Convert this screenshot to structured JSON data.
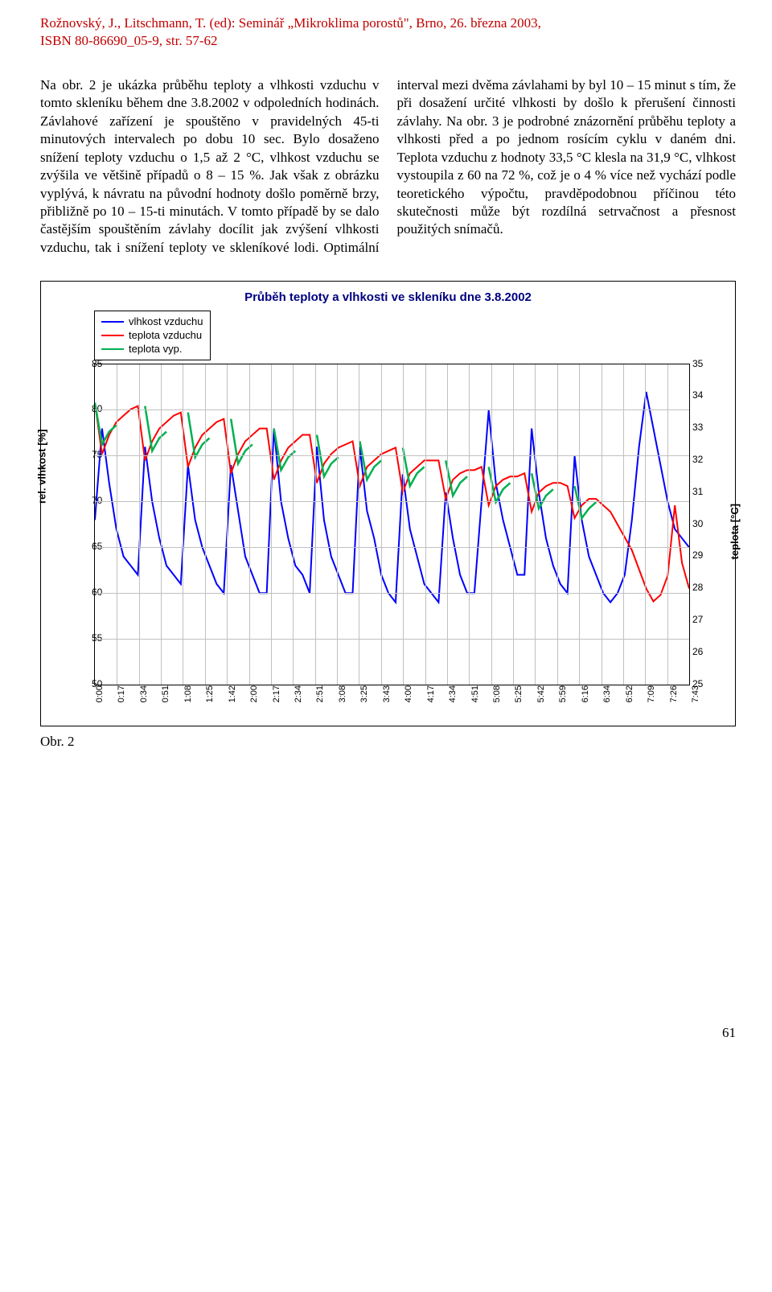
{
  "header": {
    "line1": "Rožnovský, J., Litschmann, T. (ed): Seminář „Mikroklima porostů\", Brno, 26. března 2003,",
    "line2": "ISBN 80-86690_05-9, str. 57-62",
    "color": "#c00000"
  },
  "body": {
    "p1": "Na obr. 2 je ukázka průběhu teploty a vlhkosti vzduchu v tomto skleníku během dne 3.8.2002 v odpoledních hodinách. Závlahové zařízení je spouštěno v pravidelných 45-ti minutových intervalech po dobu 10 sec. Bylo dosaženo snížení teploty vzduchu o 1,5 až 2 °C, vlhkost vzduchu se zvýšila ve většině případů o 8 – 15 %. Jak však z obrázku vyplývá, k návratu na původní hodnoty došlo poměrně brzy, přibližně po 10 – 15-ti minutách. V tomto případě by se dalo častějším spouštěním závlahy docílit jak zvýšení vlhkosti vzduchu, tak i snížení teploty ve skleníkové lodi. Optimální interval mezi dvěma závlahami by byl 10 – 15 minut s tím, že při dosažení určité vlhkosti by došlo k přerušení činnosti závlahy. Na obr. 3 je podrobné znázornění průběhu teploty a vlhkosti před a po jednom rosícím cyklu v daném dni. Teplota vzduchu z hodnoty 33,5 °C klesla na 31,9 °C, vlhkost vystoupila z 60 na 72 %, což je o 4 % více než vychází podle teoretického výpočtu, pravděpodobnou příčinou této skutečnosti může být rozdílná setrvačnost a přesnost použitých snímačů."
  },
  "chart": {
    "title": "Průběh teploty a vlhkosti ve skleníku dne 3.8.2002",
    "title_fontsize": 15,
    "title_color": "#000080",
    "legend": [
      {
        "label": "vlhkost vzduchu",
        "color": "#0000ff"
      },
      {
        "label": "teplota vzduchu",
        "color": "#ff0000"
      },
      {
        "label": "teplota vyp.",
        "color": "#00b050"
      }
    ],
    "y_left": {
      "label": "rel. vlhkost [%]",
      "min": 50,
      "max": 85,
      "step": 5
    },
    "y_right": {
      "label": "teplota [°C]",
      "min": 25,
      "max": 35,
      "step": 1
    },
    "x_labels": [
      "0:00",
      "0:17",
      "0:34",
      "0:51",
      "1:08",
      "1:25",
      "1:42",
      "2:00",
      "2:17",
      "2:34",
      "2:51",
      "3:08",
      "3:25",
      "3:43",
      "4:00",
      "4:17",
      "4:34",
      "4:51",
      "5:08",
      "5:25",
      "5:42",
      "5:59",
      "6:16",
      "6:34",
      "6:52",
      "7:09",
      "7:26",
      "7:43"
    ],
    "series_humidity": {
      "color": "#0000ff",
      "width": 2,
      "y": [
        68,
        78,
        72,
        67,
        64,
        63,
        62,
        76,
        70,
        66,
        63,
        62,
        61,
        74,
        68,
        65,
        63,
        61,
        60,
        74,
        69,
        64,
        62,
        60,
        60,
        78,
        70,
        66,
        63,
        62,
        60,
        76,
        68,
        64,
        62,
        60,
        60,
        76,
        69,
        66,
        62,
        60,
        59,
        73,
        67,
        64,
        61,
        60,
        59,
        71,
        66,
        62,
        60,
        60,
        70,
        80,
        72,
        68,
        65,
        62,
        62,
        78,
        71,
        66,
        63,
        61,
        60,
        75,
        68,
        64,
        62,
        60,
        59,
        60,
        62,
        68,
        76,
        82,
        78,
        74,
        70,
        67,
        66,
        65
      ]
    },
    "series_temp": {
      "color": "#ff0000",
      "width": 2,
      "y": [
        33.8,
        32.2,
        32.8,
        33.2,
        33.4,
        33.6,
        33.7,
        32.0,
        32.6,
        33.0,
        33.2,
        33.4,
        33.5,
        31.8,
        32.4,
        32.8,
        33.0,
        33.2,
        33.3,
        31.6,
        32.2,
        32.6,
        32.8,
        33.0,
        33.0,
        31.4,
        32.0,
        32.4,
        32.6,
        32.8,
        32.8,
        31.3,
        31.9,
        32.2,
        32.4,
        32.5,
        32.6,
        31.2,
        31.8,
        32.0,
        32.2,
        32.3,
        32.4,
        31.0,
        31.6,
        31.8,
        32.0,
        32.0,
        32.0,
        30.8,
        31.4,
        31.6,
        31.7,
        31.7,
        31.8,
        30.6,
        31.2,
        31.4,
        31.5,
        31.5,
        31.6,
        30.4,
        31.0,
        31.2,
        31.3,
        31.3,
        31.2,
        30.2,
        30.6,
        30.8,
        30.8,
        30.6,
        30.4,
        30.0,
        29.6,
        29.2,
        28.6,
        28.0,
        27.6,
        27.8,
        28.4,
        30.6,
        28.8,
        28.0
      ]
    },
    "series_temp_calc": {
      "color": "#00b050",
      "width": 2.5,
      "segments": [
        {
          "start_idx": 0,
          "y": [
            33.8,
            32.5,
            32.9,
            33.1
          ]
        },
        {
          "start_idx": 7,
          "y": [
            33.7,
            32.3,
            32.7,
            32.9
          ]
        },
        {
          "start_idx": 13,
          "y": [
            33.5,
            32.1,
            32.5,
            32.7
          ]
        },
        {
          "start_idx": 19,
          "y": [
            33.3,
            31.9,
            32.3,
            32.5
          ]
        },
        {
          "start_idx": 25,
          "y": [
            33.0,
            31.7,
            32.1,
            32.3
          ]
        },
        {
          "start_idx": 31,
          "y": [
            32.8,
            31.5,
            31.9,
            32.1
          ]
        },
        {
          "start_idx": 37,
          "y": [
            32.6,
            31.4,
            31.8,
            32.0
          ]
        },
        {
          "start_idx": 43,
          "y": [
            32.4,
            31.2,
            31.6,
            31.8
          ]
        },
        {
          "start_idx": 49,
          "y": [
            32.0,
            30.9,
            31.3,
            31.5
          ]
        },
        {
          "start_idx": 55,
          "y": [
            31.8,
            30.7,
            31.1,
            31.3
          ]
        },
        {
          "start_idx": 61,
          "y": [
            31.6,
            30.5,
            30.9,
            31.1
          ]
        },
        {
          "start_idx": 67,
          "y": [
            31.2,
            30.2,
            30.5,
            30.7
          ]
        }
      ]
    },
    "grid_color": "#c0c0c0",
    "background": "#ffffff"
  },
  "fig_caption": "Obr. 2",
  "page_number": "61"
}
